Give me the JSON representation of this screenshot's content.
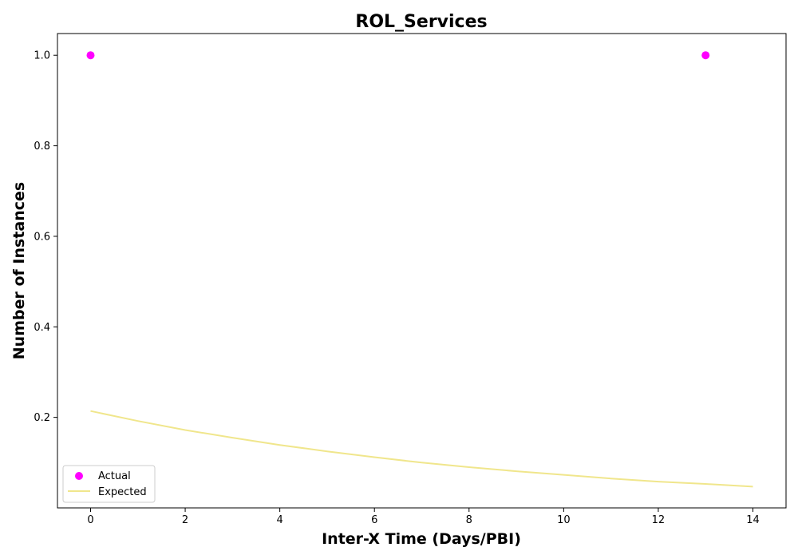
{
  "chart_data": {
    "type": "scatter",
    "title": "ROL_Services",
    "xlabel": "Inter-X Time (Days/PBI)",
    "ylabel": "Number of Instances",
    "xlim": [
      -0.7,
      14.7
    ],
    "ylim": [
      0.0,
      1.048
    ],
    "xticks": [
      0,
      2,
      4,
      6,
      8,
      10,
      12,
      14
    ],
    "yticks": [
      0.2,
      0.4,
      0.6,
      0.8,
      1.0
    ],
    "xtick_labels": [
      "0",
      "2",
      "4",
      "6",
      "8",
      "10",
      "12",
      "14"
    ],
    "ytick_labels": [
      "0.2",
      "0.4",
      "0.6",
      "0.8",
      "1.0"
    ],
    "grid": false,
    "legend_position": "lower-left",
    "series": [
      {
        "name": "Actual",
        "kind": "scatter",
        "color": "#ff00ff",
        "points": [
          {
            "x": 0,
            "y": 1.0
          },
          {
            "x": 13,
            "y": 1.0
          }
        ]
      },
      {
        "name": "Expected",
        "kind": "line",
        "color": "#f0e68c",
        "points": [
          {
            "x": 0,
            "y": 0.214
          },
          {
            "x": 1,
            "y": 0.192
          },
          {
            "x": 2,
            "y": 0.172
          },
          {
            "x": 3,
            "y": 0.155
          },
          {
            "x": 4,
            "y": 0.139
          },
          {
            "x": 5,
            "y": 0.125
          },
          {
            "x": 6,
            "y": 0.112
          },
          {
            "x": 7,
            "y": 0.1
          },
          {
            "x": 8,
            "y": 0.09
          },
          {
            "x": 9,
            "y": 0.081
          },
          {
            "x": 10,
            "y": 0.073
          },
          {
            "x": 11,
            "y": 0.065
          },
          {
            "x": 12,
            "y": 0.058
          },
          {
            "x": 13,
            "y": 0.053
          },
          {
            "x": 14,
            "y": 0.047
          }
        ]
      }
    ]
  }
}
